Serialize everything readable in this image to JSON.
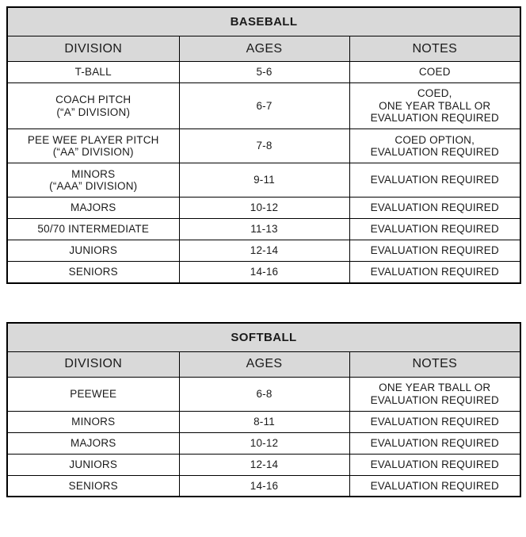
{
  "colors": {
    "header_bg": "#d9d9d9",
    "border": "#000000",
    "text": "#1b1b1b",
    "page_bg": "#ffffff"
  },
  "tables": [
    {
      "title": "BASEBALL",
      "columns": [
        "DIVISION",
        "AGES",
        "NOTES"
      ],
      "rows": [
        {
          "division": [
            "T-BALL"
          ],
          "ages": "5-6",
          "notes": [
            "COED"
          ]
        },
        {
          "division": [
            "COACH PITCH",
            "(“A” DIVISION)"
          ],
          "ages": "6-7",
          "notes": [
            "COED,",
            "ONE YEAR TBALL OR",
            "EVALUATION REQUIRED"
          ]
        },
        {
          "division": [
            "PEE WEE PLAYER PITCH",
            "(“AA” DIVISION)"
          ],
          "ages": "7-8",
          "notes": [
            "COED OPTION,",
            "EVALUATION REQUIRED"
          ]
        },
        {
          "division": [
            "MINORS",
            "(“AAA” DIVISION)"
          ],
          "ages": "9-11",
          "notes": [
            "EVALUATION REQUIRED"
          ]
        },
        {
          "division": [
            "MAJORS"
          ],
          "ages": "10-12",
          "notes": [
            "EVALUATION REQUIRED"
          ]
        },
        {
          "division": [
            "50/70 INTERMEDIATE"
          ],
          "ages": "11-13",
          "notes": [
            "EVALUATION REQUIRED"
          ]
        },
        {
          "division": [
            "JUNIORS"
          ],
          "ages": "12-14",
          "notes": [
            "EVALUATION REQUIRED"
          ]
        },
        {
          "division": [
            "SENIORS"
          ],
          "ages": "14-16",
          "notes": [
            "EVALUATION REQUIRED"
          ]
        }
      ]
    },
    {
      "title": "SOFTBALL",
      "columns": [
        "DIVISION",
        "AGES",
        "NOTES"
      ],
      "rows": [
        {
          "division": [
            "PEEWEE"
          ],
          "ages": "6-8",
          "notes": [
            "ONE YEAR TBALL OR",
            "EVALUATION REQUIRED"
          ]
        },
        {
          "division": [
            "MINORS"
          ],
          "ages": "8-11",
          "notes": [
            "EVALUATION REQUIRED"
          ]
        },
        {
          "division": [
            "MAJORS"
          ],
          "ages": "10-12",
          "notes": [
            "EVALUATION REQUIRED"
          ]
        },
        {
          "division": [
            "JUNIORS"
          ],
          "ages": "12-14",
          "notes": [
            "EVALUATION REQUIRED"
          ]
        },
        {
          "division": [
            "SENIORS"
          ],
          "ages": "14-16",
          "notes": [
            "EVALUATION REQUIRED"
          ]
        }
      ]
    }
  ]
}
